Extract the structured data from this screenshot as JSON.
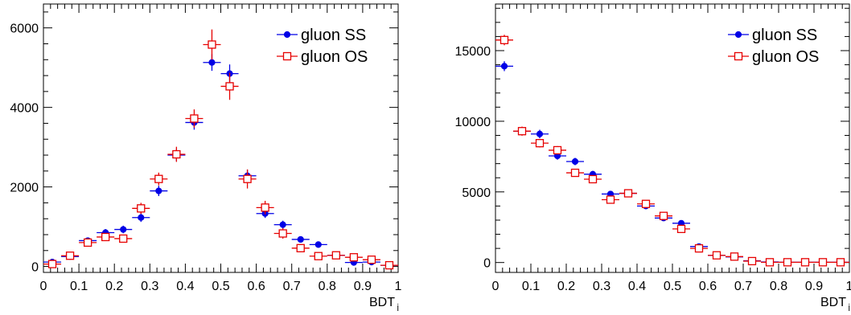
{
  "colors": {
    "ss": "#0000e6",
    "os": "#e60000",
    "axis": "#000000",
    "background": "#ffffff"
  },
  "chart_data": [
    {
      "type": "scatter",
      "xlabel": "BDT",
      "xlabel_sub": "j",
      "xlim": [
        0,
        1
      ],
      "ylim": [
        -150,
        6600
      ],
      "xticks": [
        "0",
        "0.1",
        "0.2",
        "0.3",
        "0.4",
        "0.5",
        "0.6",
        "0.7",
        "0.8",
        "0.9",
        "1"
      ],
      "yticks": [
        "0",
        "2000",
        "4000",
        "6000"
      ],
      "legend_position": "top-right",
      "bin_width": 0.05,
      "series": [
        {
          "name": "gluon SS",
          "marker": "filled-circle",
          "x": [
            0.025,
            0.075,
            0.125,
            0.175,
            0.225,
            0.275,
            0.325,
            0.375,
            0.425,
            0.475,
            0.525,
            0.575,
            0.625,
            0.675,
            0.725,
            0.775,
            0.825,
            0.875,
            0.925,
            0.975
          ],
          "y": [
            110,
            250,
            650,
            850,
            930,
            1230,
            1900,
            2800,
            3620,
            5130,
            4850,
            2280,
            1330,
            1050,
            680,
            550,
            280,
            100,
            110,
            30
          ],
          "yerr": [
            30,
            50,
            80,
            90,
            95,
            110,
            130,
            150,
            180,
            210,
            230,
            150,
            110,
            100,
            80,
            70,
            55,
            35,
            35,
            20
          ]
        },
        {
          "name": "gluon OS",
          "marker": "open-square",
          "x": [
            0.025,
            0.075,
            0.125,
            0.175,
            0.225,
            0.275,
            0.325,
            0.375,
            0.425,
            0.475,
            0.525,
            0.575,
            0.625,
            0.675,
            0.725,
            0.775,
            0.825,
            0.875,
            0.925,
            0.975
          ],
          "y": [
            60,
            270,
            600,
            740,
            700,
            1460,
            2200,
            2820,
            3720,
            5580,
            4530,
            2200,
            1480,
            830,
            460,
            260,
            280,
            230,
            170,
            30
          ],
          "yerr": [
            30,
            60,
            90,
            100,
            100,
            140,
            160,
            190,
            230,
            380,
            340,
            240,
            170,
            130,
            100,
            70,
            70,
            60,
            50,
            20
          ]
        }
      ]
    },
    {
      "type": "scatter",
      "xlabel": "BDT",
      "xlabel_sub": "j",
      "xlim": [
        0,
        1
      ],
      "ylim": [
        -700,
        18300
      ],
      "xticks": [
        "0",
        "0.1",
        "0.2",
        "0.3",
        "0.4",
        "0.5",
        "0.6",
        "0.7",
        "0.8",
        "0.9",
        "1"
      ],
      "yticks": [
        "0",
        "5000",
        "10000",
        "15000"
      ],
      "legend_position": "top-right",
      "bin_width": 0.05,
      "series": [
        {
          "name": "gluon SS",
          "marker": "filled-circle",
          "x": [
            0.025,
            0.075,
            0.125,
            0.175,
            0.225,
            0.275,
            0.325,
            0.375,
            0.425,
            0.475,
            0.525,
            0.575,
            0.625,
            0.675,
            0.725,
            0.775,
            0.825,
            0.875,
            0.925,
            0.975
          ],
          "y": [
            13900,
            9300,
            9100,
            7550,
            7150,
            6250,
            4850,
            4900,
            4000,
            3150,
            2780,
            1130,
            500,
            400,
            120,
            40,
            20,
            20,
            20,
            20
          ],
          "yerr": [
            350,
            300,
            300,
            270,
            260,
            240,
            220,
            220,
            200,
            180,
            160,
            110,
            70,
            60,
            40,
            30,
            20,
            20,
            20,
            20
          ]
        },
        {
          "name": "gluon OS",
          "marker": "open-square",
          "x": [
            0.025,
            0.075,
            0.125,
            0.175,
            0.225,
            0.275,
            0.325,
            0.375,
            0.425,
            0.475,
            0.525,
            0.575,
            0.625,
            0.675,
            0.725,
            0.775,
            0.825,
            0.875,
            0.925,
            0.975
          ],
          "y": [
            15750,
            9300,
            8450,
            7950,
            6350,
            5900,
            4450,
            4900,
            4150,
            3300,
            2380,
            1000,
            510,
            420,
            100,
            20,
            20,
            20,
            20,
            20
          ],
          "yerr": [
            370,
            320,
            300,
            290,
            260,
            250,
            220,
            230,
            210,
            190,
            160,
            110,
            80,
            60,
            40,
            30,
            20,
            20,
            20,
            20
          ]
        }
      ]
    }
  ]
}
